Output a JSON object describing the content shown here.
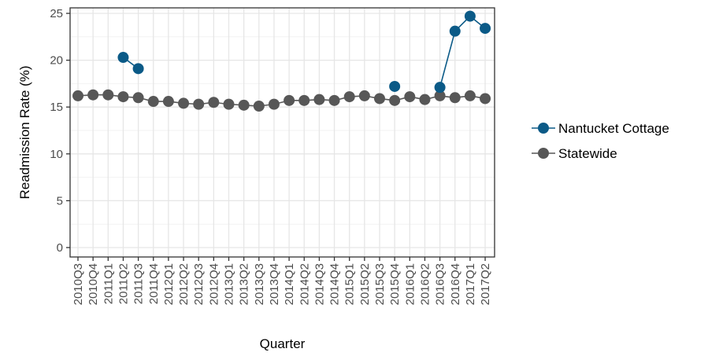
{
  "chart_data": {
    "type": "line",
    "xlabel": "Quarter",
    "ylabel": "Readmission Rate (%)",
    "ylim": [
      0,
      25
    ],
    "yticks": [
      0,
      5,
      10,
      15,
      20,
      25
    ],
    "grid": true,
    "legend_position": "right",
    "categories": [
      "2010Q3",
      "2010Q4",
      "2011Q1",
      "2011Q2",
      "2011Q3",
      "2011Q4",
      "2012Q1",
      "2012Q2",
      "2012Q3",
      "2012Q4",
      "2013Q1",
      "2013Q2",
      "2013Q3",
      "2013Q4",
      "2014Q1",
      "2014Q2",
      "2014Q3",
      "2014Q4",
      "2015Q1",
      "2015Q2",
      "2015Q3",
      "2015Q4",
      "2016Q1",
      "2016Q2",
      "2016Q3",
      "2016Q4",
      "2017Q1",
      "2017Q2"
    ],
    "series": [
      {
        "name": "Nantucket Cottage",
        "color": "#0b5a87",
        "values": [
          null,
          null,
          null,
          20.3,
          19.1,
          null,
          null,
          null,
          null,
          null,
          null,
          null,
          null,
          null,
          null,
          null,
          null,
          null,
          null,
          null,
          null,
          17.2,
          null,
          null,
          17.1,
          23.1,
          24.7,
          23.4
        ]
      },
      {
        "name": "Statewide",
        "color": "#575757",
        "values": [
          16.2,
          16.3,
          16.3,
          16.1,
          16.0,
          15.6,
          15.6,
          15.4,
          15.3,
          15.5,
          15.3,
          15.2,
          15.1,
          15.3,
          15.7,
          15.7,
          15.8,
          15.7,
          16.1,
          16.2,
          15.9,
          15.7,
          16.1,
          15.8,
          16.2,
          16.0,
          16.2,
          15.9
        ]
      }
    ]
  }
}
